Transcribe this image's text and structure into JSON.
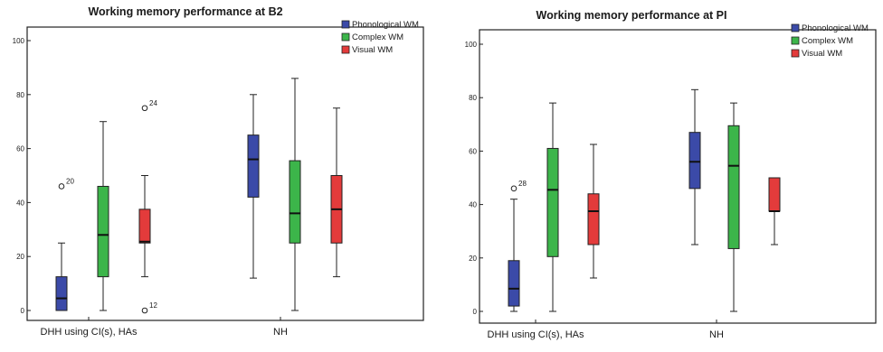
{
  "chart_data": [
    {
      "type": "boxplot",
      "title": "Working memory performance at B2",
      "categories": [
        "DHH using CI(s), HAs",
        "NH"
      ],
      "yticks": [
        "0",
        "20",
        "40",
        "60",
        "80",
        "100"
      ],
      "ylim": [
        0,
        100
      ],
      "legend": {
        "placement": "top-right",
        "entries": [
          "Phonological WM",
          "Complex WM",
          "Visual WM"
        ]
      },
      "series": [
        {
          "name": "Phonological WM",
          "color": "#3b4aa8",
          "boxes": [
            {
              "min": 0,
              "q1": 0,
              "median": 4.5,
              "q3": 12.5,
              "max": 25,
              "outliers": [
                {
                  "value": 46,
                  "label": "20"
                }
              ]
            },
            {
              "min": 12,
              "q1": 42,
              "median": 56,
              "q3": 65,
              "max": 80,
              "outliers": []
            }
          ]
        },
        {
          "name": "Complex WM",
          "color": "#3cb54a",
          "boxes": [
            {
              "min": 0,
              "q1": 12.5,
              "median": 28,
              "q3": 46,
              "max": 70,
              "outliers": []
            },
            {
              "min": 0,
              "q1": 25,
              "median": 36,
              "q3": 55.5,
              "max": 86,
              "outliers": []
            }
          ]
        },
        {
          "name": "Visual WM",
          "color": "#e33b3b",
          "boxes": [
            {
              "min": 12.5,
              "q1": 25,
              "median": 25.5,
              "q3": 37.5,
              "max": 50,
              "outliers": [
                {
                  "value": 75,
                  "label": "24"
                },
                {
                  "value": 0,
                  "label": "12"
                }
              ]
            },
            {
              "min": 12.5,
              "q1": 25,
              "median": 37.5,
              "q3": 50,
              "max": 75,
              "outliers": []
            }
          ]
        }
      ]
    },
    {
      "type": "boxplot",
      "title": "Working memory performance at PI",
      "categories": [
        "DHH using CI(s), HAs",
        "NH"
      ],
      "yticks": [
        "0",
        "20",
        "40",
        "60",
        "80",
        "100"
      ],
      "ylim": [
        0,
        100
      ],
      "legend": {
        "placement": "top-right",
        "entries": [
          "Phonological WM",
          "Complex WM",
          "Visual WM"
        ]
      },
      "series": [
        {
          "name": "Phonological WM",
          "color": "#3b4aa8",
          "boxes": [
            {
              "min": 0,
              "q1": 2,
              "median": 8.5,
              "q3": 19,
              "max": 42,
              "outliers": [
                {
                  "value": 46,
                  "label": "28"
                }
              ]
            },
            {
              "min": 25,
              "q1": 46,
              "median": 56,
              "q3": 67,
              "max": 83,
              "outliers": []
            }
          ]
        },
        {
          "name": "Complex WM",
          "color": "#3cb54a",
          "boxes": [
            {
              "min": 0,
              "q1": 20.5,
              "median": 45.5,
              "q3": 61,
              "max": 78,
              "outliers": []
            },
            {
              "min": 0,
              "q1": 23.5,
              "median": 54.5,
              "q3": 69.5,
              "max": 78,
              "outliers": []
            }
          ]
        },
        {
          "name": "Visual WM",
          "color": "#e33b3b",
          "boxes": [
            {
              "min": 12.5,
              "q1": 25,
              "median": 37.5,
              "q3": 44,
              "max": 62.5,
              "outliers": []
            },
            {
              "min": 25,
              "q1": 37.5,
              "median": 37.5,
              "q3": 50,
              "max": 50,
              "outliers": []
            }
          ]
        }
      ]
    }
  ]
}
